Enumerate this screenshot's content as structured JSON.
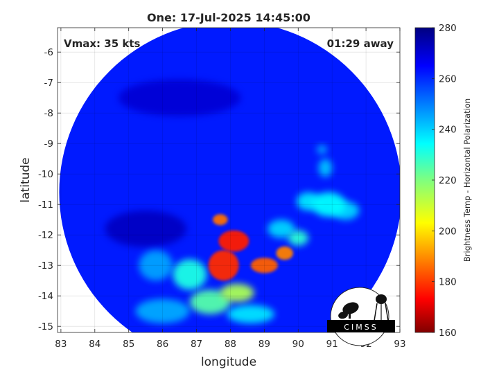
{
  "chart_data": {
    "type": "heatmap",
    "title": "One: 17-Jul-2025 14:45:00",
    "xlabel": "longitude",
    "ylabel": "latitude",
    "xlim": [
      82.9,
      93
    ],
    "ylim": [
      -15.2,
      -5.2
    ],
    "xticks": [
      83,
      84,
      85,
      86,
      87,
      88,
      89,
      90,
      91,
      92,
      93
    ],
    "yticks": [
      -6,
      -7,
      -8,
      -9,
      -10,
      -11,
      -12,
      -13,
      -14,
      -15
    ],
    "grid": true,
    "annotations": {
      "left": "Vmax: 35 kts",
      "right": "01:29 away"
    },
    "colorbar": {
      "label": "Brightness Temp - Horizontal Polarization",
      "range": [
        160,
        280
      ],
      "ticks": [
        160,
        180,
        200,
        220,
        240,
        260,
        280
      ],
      "colormap": "jet"
    },
    "swath": {
      "center_lon": 88.0,
      "center_lat": -10.6,
      "radius_deg": 5.05,
      "background_tb": 262
    },
    "features": [
      {
        "lon": 88.1,
        "lat": -12.2,
        "tb": 178,
        "rx": 0.45,
        "ry": 0.35
      },
      {
        "lon": 87.8,
        "lat": -13.0,
        "tb": 180,
        "rx": 0.45,
        "ry": 0.5
      },
      {
        "lon": 87.7,
        "lat": -11.5,
        "tb": 188,
        "rx": 0.22,
        "ry": 0.18
      },
      {
        "lon": 89.0,
        "lat": -13.0,
        "tb": 186,
        "rx": 0.4,
        "ry": 0.25
      },
      {
        "lon": 89.6,
        "lat": -12.6,
        "tb": 190,
        "rx": 0.25,
        "ry": 0.22
      },
      {
        "lon": 88.2,
        "lat": -13.9,
        "tb": 215,
        "rx": 0.5,
        "ry": 0.3
      },
      {
        "lon": 87.4,
        "lat": -14.2,
        "tb": 225,
        "rx": 0.6,
        "ry": 0.4
      },
      {
        "lon": 86.8,
        "lat": -13.3,
        "tb": 232,
        "rx": 0.5,
        "ry": 0.5
      },
      {
        "lon": 90.0,
        "lat": -12.1,
        "tb": 230,
        "rx": 0.3,
        "ry": 0.25
      },
      {
        "lon": 90.9,
        "lat": -11.0,
        "tb": 235,
        "rx": 0.5,
        "ry": 0.4
      },
      {
        "lon": 91.4,
        "lat": -11.2,
        "tb": 240,
        "rx": 0.4,
        "ry": 0.3
      },
      {
        "lon": 90.3,
        "lat": -10.9,
        "tb": 238,
        "rx": 0.35,
        "ry": 0.3
      },
      {
        "lon": 90.8,
        "lat": -9.8,
        "tb": 242,
        "rx": 0.2,
        "ry": 0.3
      },
      {
        "lon": 90.7,
        "lat": -9.2,
        "tb": 245,
        "rx": 0.15,
        "ry": 0.15
      },
      {
        "lon": 89.5,
        "lat": -11.8,
        "tb": 240,
        "rx": 0.4,
        "ry": 0.3
      },
      {
        "lon": 88.6,
        "lat": -14.6,
        "tb": 238,
        "rx": 0.7,
        "ry": 0.3
      },
      {
        "lon": 86.0,
        "lat": -14.5,
        "tb": 245,
        "rx": 0.8,
        "ry": 0.4
      },
      {
        "lon": 85.8,
        "lat": -13.0,
        "tb": 246,
        "rx": 0.5,
        "ry": 0.5
      },
      {
        "lon": 85.5,
        "lat": -11.8,
        "tb": 272,
        "rx": 1.2,
        "ry": 0.6
      },
      {
        "lon": 86.5,
        "lat": -7.5,
        "tb": 270,
        "rx": 1.8,
        "ry": 0.6
      }
    ]
  },
  "logo": {
    "text": "CIMSS"
  }
}
